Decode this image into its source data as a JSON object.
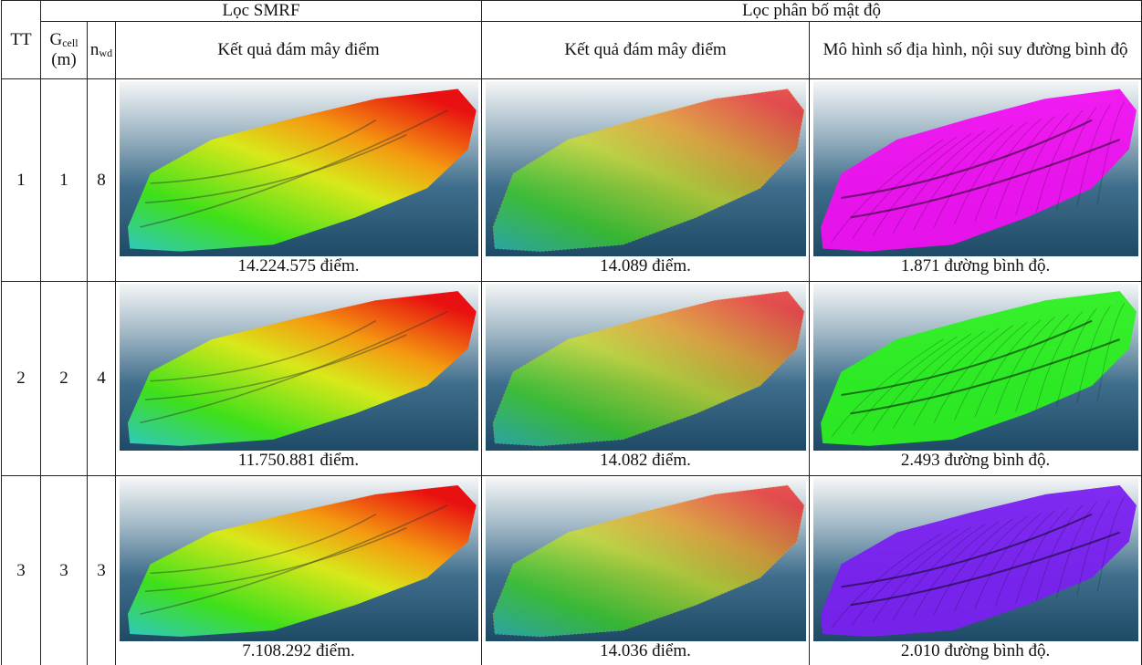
{
  "table": {
    "header": {
      "tt": "TT",
      "g_cell": "G",
      "g_cell_sub": "cell",
      "g_cell_unit": "(m)",
      "n_wd": "n",
      "n_wd_sub": "wd",
      "smrf": "Lọc SMRF",
      "density": "Lọc phân bố mật độ",
      "smrf_result": "Kết quả đám mây điểm",
      "density_result": "Kết quả đám mây điểm",
      "dtm": "Mô hình số địa hình, nội suy đường bình độ"
    },
    "rows": [
      {
        "tt": "1",
        "g_cell": "1",
        "n_wd": "8",
        "smrf_caption": "14.224.575 điểm.",
        "density_caption": "14.089 điểm.",
        "dtm_caption": "1.871 đường bình độ."
      },
      {
        "tt": "2",
        "g_cell": "2",
        "n_wd": "4",
        "smrf_caption": "11.750.881 điểm.",
        "density_caption": "14.082 điểm.",
        "dtm_caption": "2.493 đường bình độ."
      },
      {
        "tt": "3",
        "g_cell": "3",
        "n_wd": "3",
        "smrf_caption": "7.108.292 điểm.",
        "density_caption": "14.036 điểm.",
        "dtm_caption": "2.010 đường bình độ."
      }
    ]
  }
}
